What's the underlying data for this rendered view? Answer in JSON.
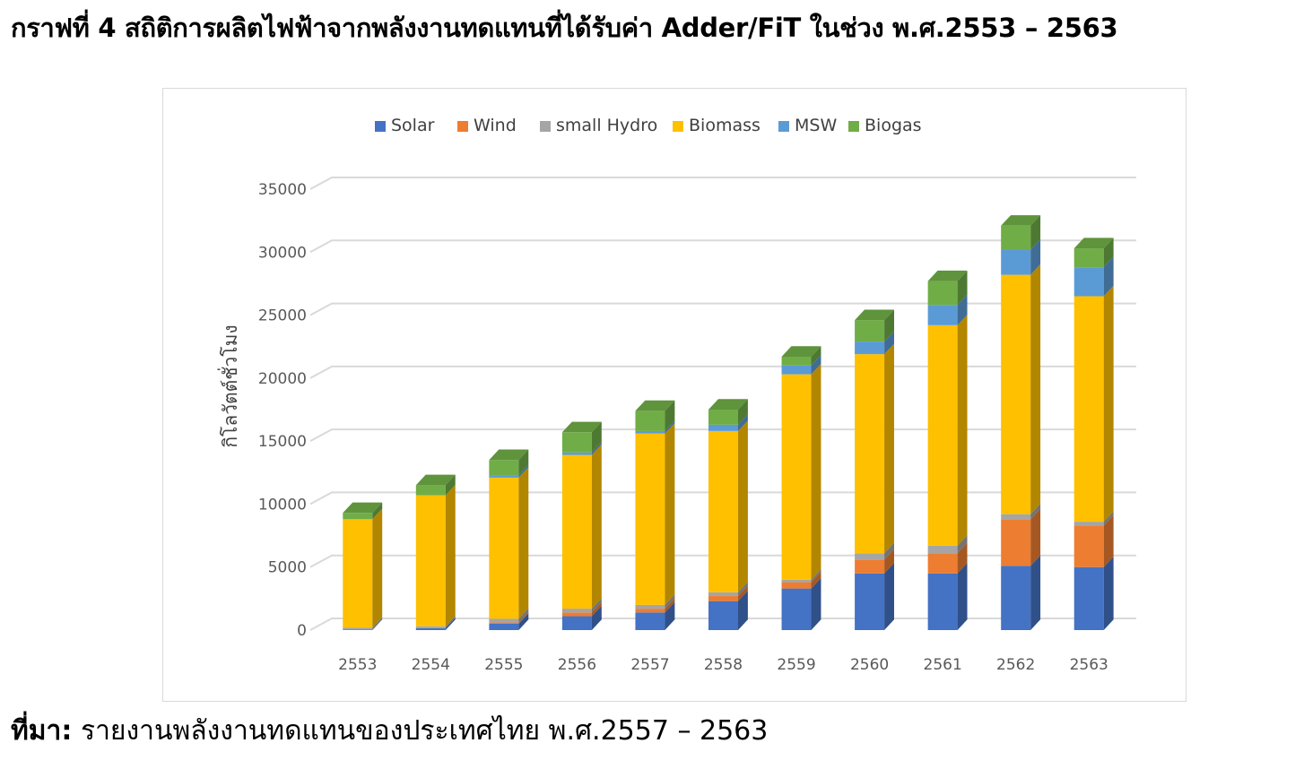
{
  "page": {
    "title": "กราฟที่ 4 สถิติการผลิตไฟฟ้าจากพลังงานทดแทนที่ได้รับค่า Adder/FiT ในช่วง พ.ศ.2553 – 2563",
    "source_label": "ที่มา:",
    "source_text": "รายงานพลังงานทดแทนของประเทศไทย พ.ศ.2557 – 2563"
  },
  "colors": {
    "Solar": "#4472c4",
    "Wind": "#ed7d31",
    "small Hydro": "#a5a5a5",
    "Biomass": "#ffc000",
    "MSW": "#5b9bd5",
    "Biogas": "#70ad47"
  },
  "chart_data": {
    "type": "bar",
    "stacked": true,
    "three_d": true,
    "title": "",
    "xlabel": "",
    "ylabel": "กิโลวัตต์ชั่วโมง",
    "ylim": [
      0,
      35000
    ],
    "yticks": [
      0,
      5000,
      10000,
      15000,
      20000,
      25000,
      30000,
      35000
    ],
    "grid": true,
    "legend_position": "top",
    "categories": [
      "2553",
      "2554",
      "2555",
      "2556",
      "2557",
      "2558",
      "2559",
      "2560",
      "2561",
      "2562",
      "2563"
    ],
    "series": [
      {
        "name": "Solar",
        "values": [
          50,
          150,
          500,
          1100,
          1400,
          2300,
          3300,
          4500,
          4500,
          5100,
          5000
        ]
      },
      {
        "name": "Wind",
        "values": [
          0,
          0,
          100,
          300,
          300,
          400,
          500,
          1100,
          1600,
          3700,
          3300
        ]
      },
      {
        "name": "small Hydro",
        "values": [
          150,
          150,
          300,
          300,
          300,
          300,
          200,
          500,
          600,
          400,
          300
        ]
      },
      {
        "name": "Biomass",
        "values": [
          8600,
          10400,
          11200,
          12200,
          13600,
          12800,
          16300,
          15800,
          17500,
          19000,
          17900
        ]
      },
      {
        "name": "MSW",
        "values": [
          0,
          0,
          200,
          200,
          200,
          500,
          700,
          1000,
          1600,
          2000,
          2300
        ]
      },
      {
        "name": "Biogas",
        "values": [
          500,
          800,
          1200,
          1600,
          1600,
          1200,
          700,
          1700,
          1900,
          1900,
          1500
        ]
      }
    ]
  }
}
